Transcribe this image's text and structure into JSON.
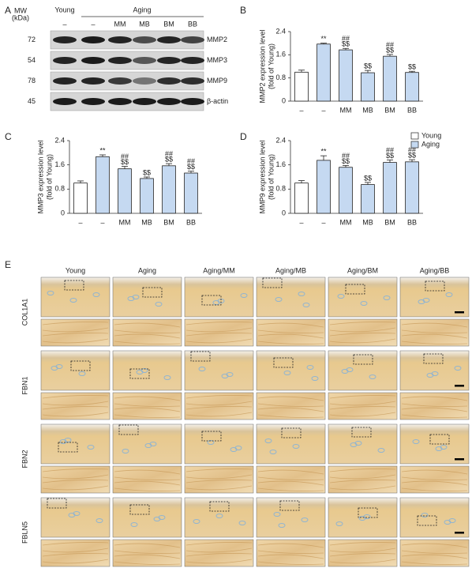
{
  "panel_labels": [
    "A",
    "B",
    "C",
    "D",
    "E"
  ],
  "blot": {
    "mw_label": [
      "MW",
      "(kDa)"
    ],
    "groups": [
      "Young",
      "Aging"
    ],
    "lanes": [
      "–",
      "–",
      "MM",
      "MB",
      "BM",
      "BB"
    ],
    "rows": [
      {
        "mw": "72",
        "name": "MMP2"
      },
      {
        "mw": "54",
        "name": "MMP3"
      },
      {
        "mw": "78",
        "name": "MMP9"
      },
      {
        "mw": "45",
        "name": "β-actin"
      }
    ]
  },
  "legend": [
    {
      "name": "Young",
      "color": "#ffffff"
    },
    {
      "name": "Aging",
      "color": "#c5d9f1"
    }
  ],
  "chart_data": [
    {
      "type": "bar",
      "ylabel": [
        "MMP2 expression level",
        "(fold of Young)"
      ],
      "categories": [
        "–",
        "–",
        "MM",
        "MB",
        "BM",
        "BB"
      ],
      "values": [
        1.0,
        1.97,
        1.77,
        0.98,
        1.55,
        0.99
      ],
      "errors": [
        0.07,
        0.03,
        0.05,
        0.08,
        0.06,
        0.04
      ],
      "colors": [
        "#ffffff",
        "#c5d9f1",
        "#c5d9f1",
        "#c5d9f1",
        "#c5d9f1",
        "#c5d9f1"
      ],
      "annotations": [
        null,
        [
          "**"
        ],
        [
          "##",
          "$$"
        ],
        [
          "$$"
        ],
        [
          "##",
          "$$"
        ],
        [
          "$$"
        ]
      ],
      "ylim": [
        0,
        2.4
      ],
      "yticks": [
        0,
        0.8,
        1.6,
        2.4
      ]
    },
    {
      "type": "bar",
      "ylabel": [
        "MMP3 expression level",
        "(fold of Young)"
      ],
      "categories": [
        "–",
        "–",
        "MM",
        "MB",
        "BM",
        "BB"
      ],
      "values": [
        1.0,
        1.87,
        1.47,
        1.15,
        1.57,
        1.33
      ],
      "errors": [
        0.07,
        0.06,
        0.08,
        0.05,
        0.07,
        0.06
      ],
      "colors": [
        "#ffffff",
        "#c5d9f1",
        "#c5d9f1",
        "#c5d9f1",
        "#c5d9f1",
        "#c5d9f1"
      ],
      "annotations": [
        null,
        [
          "**"
        ],
        [
          "##",
          "$$"
        ],
        [
          "$$"
        ],
        [
          "##",
          "$$"
        ],
        [
          "##",
          "$$"
        ]
      ],
      "ylim": [
        0,
        2.4
      ],
      "yticks": [
        0,
        0.8,
        1.6,
        2.4
      ]
    },
    {
      "type": "bar",
      "ylabel": [
        "MMP9 expression level",
        "(fold of Young)"
      ],
      "categories": [
        "–",
        "–",
        "MM",
        "MB",
        "BM",
        "BB"
      ],
      "values": [
        1.0,
        1.75,
        1.52,
        0.95,
        1.68,
        1.7
      ],
      "errors": [
        0.08,
        0.15,
        0.06,
        0.07,
        0.08,
        0.07
      ],
      "colors": [
        "#ffffff",
        "#c5d9f1",
        "#c5d9f1",
        "#c5d9f1",
        "#c5d9f1",
        "#c5d9f1"
      ],
      "annotations": [
        null,
        [
          "**"
        ],
        [
          "##",
          "$$"
        ],
        [
          "$$"
        ],
        [
          "##",
          "$$"
        ],
        [
          "##",
          "$$"
        ]
      ],
      "ylim": [
        0,
        2.4
      ],
      "yticks": [
        0,
        0.8,
        1.6,
        2.4
      ]
    }
  ],
  "histology": {
    "columns": [
      "Young",
      "Aging",
      "Aging/MM",
      "Aging/MB",
      "Aging/BM",
      "Aging/BB"
    ],
    "rows": [
      "COL1A1",
      "FBN1",
      "FBN2",
      "FBLN5"
    ]
  }
}
